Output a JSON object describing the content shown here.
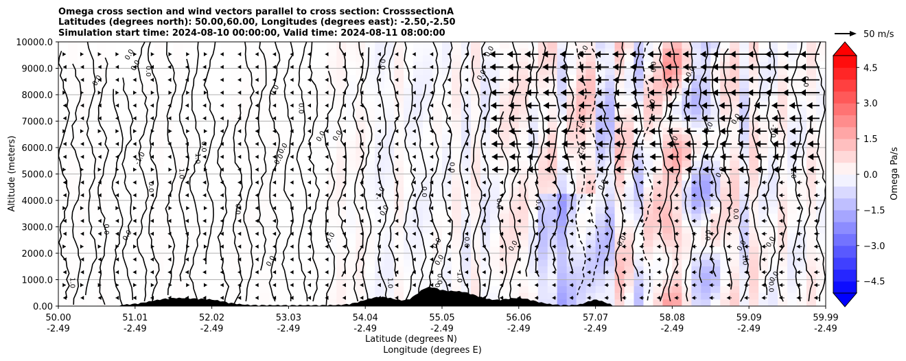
{
  "chart_data": {
    "type": "heatmap",
    "title_lines": [
      "Omega cross section and wind vectors parallel to cross section: CrosssectionA",
      "Latitudes (degrees north): 50.00,60.00, Longitudes (degrees east): -2.50,-2.50",
      "Simulation start time: 2024-08-10 00:00:00, Valid time: 2024-08-11 08:00:00"
    ],
    "xlabel_lines": [
      "Latitude (degrees N)",
      "Longitude (degrees E)"
    ],
    "ylabel": "Altitude (meters)",
    "x_ticks": [
      {
        "lat": "50.00",
        "lon": "-2.49"
      },
      {
        "lat": "51.01",
        "lon": "-2.49"
      },
      {
        "lat": "52.02",
        "lon": "-2.49"
      },
      {
        "lat": "53.03",
        "lon": "-2.49"
      },
      {
        "lat": "54.04",
        "lon": "-2.49"
      },
      {
        "lat": "55.05",
        "lon": "-2.49"
      },
      {
        "lat": "56.06",
        "lon": "-2.49"
      },
      {
        "lat": "57.07",
        "lon": "-2.49"
      },
      {
        "lat": "58.08",
        "lon": "-2.49"
      },
      {
        "lat": "59.09",
        "lon": "-2.49"
      },
      {
        "lat": "59.99",
        "lon": "-2.49"
      }
    ],
    "y_ticks": [
      "0.00",
      "1000.0",
      "2000.0",
      "3000.0",
      "4000.0",
      "5000.0",
      "6000.0",
      "7000.0",
      "8000.0",
      "9000.0",
      "10000.0"
    ],
    "y_tick_values": [
      0,
      1000,
      2000,
      3000,
      4000,
      5000,
      6000,
      7000,
      8000,
      9000,
      10000
    ],
    "ylim": [
      0,
      10000
    ],
    "colorbar": {
      "label": "Omega Pa/s",
      "range": [
        -5.0,
        5.0
      ],
      "levels": 20,
      "extend": "both",
      "ticks": [
        "4.5",
        "3.0",
        "1.5",
        "0.0",
        "−1.5",
        "−3.0",
        "−4.5"
      ],
      "tick_values": [
        4.5,
        3.0,
        1.5,
        0.0,
        -1.5,
        -3.0,
        -4.5
      ],
      "colormap": "bwr"
    },
    "quiver_key": {
      "label": "50 m/s",
      "speed": 50
    },
    "contour_levels": [
      -1.0,
      0.0,
      1.0
    ],
    "contour_labels": [
      "0.0",
      "1.0",
      "-1.0"
    ],
    "grid": true
  }
}
